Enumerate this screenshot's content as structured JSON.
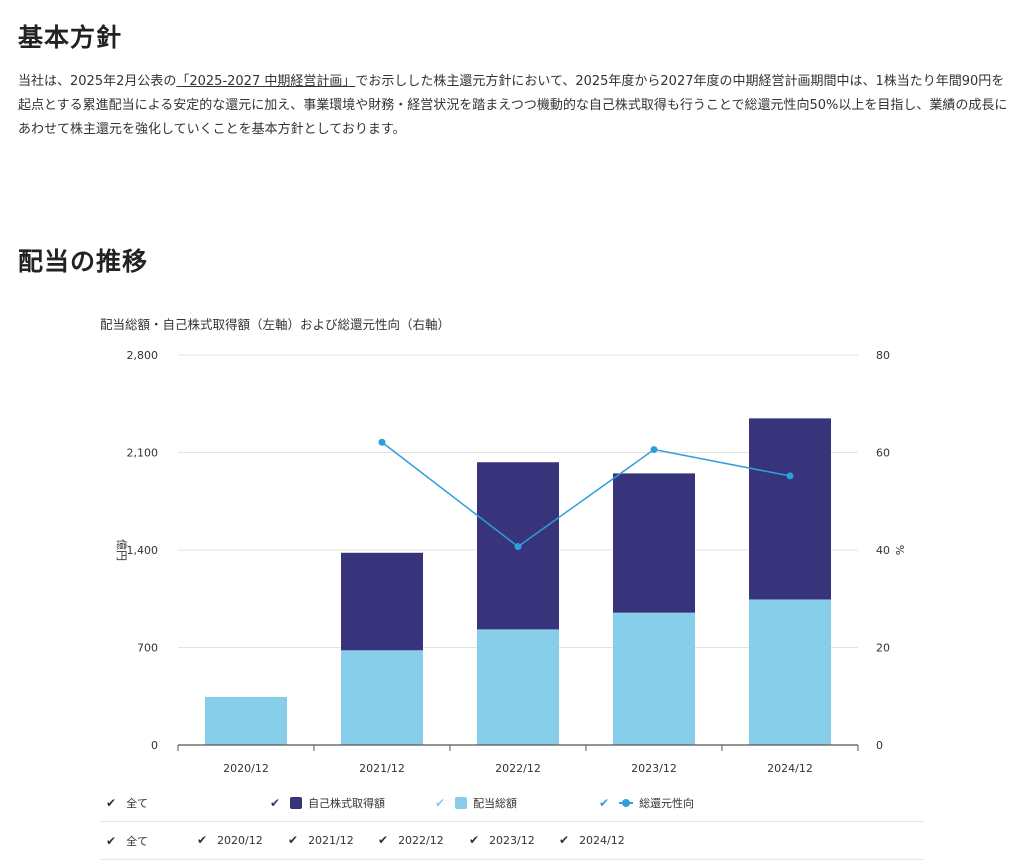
{
  "sections": {
    "policy_heading": "基本方針",
    "policy_text_before": "当社は、2025年2月公表の",
    "policy_link": "「2025-2027 中期経営計画」",
    "policy_text_after": "でお示しした株主還元方針において、2025年度から2027年度の中期経営計画期間中は、1株当たり年間90円を起点とする累進配当による安定的な還元に加え、事業環境や財務・経営状況を踏まえつつ機動的な自己株式取得も行うことで総還元性向50%以上を目指し、業績の成長にあわせて株主還元を強化していくことを基本方針としております。",
    "trend_heading": "配当の推移"
  },
  "chart_data": {
    "type": "bar",
    "stacked": true,
    "title": "配当総額・自己株式取得額（左軸）および総還元性向（右軸）",
    "categories": [
      "2020/12",
      "2021/12",
      "2022/12",
      "2023/12",
      "2024/12"
    ],
    "ylabel": "億円",
    "y2label": "%",
    "ylim": [
      0,
      2800
    ],
    "y2lim": [
      0,
      80
    ],
    "yticks": [
      0,
      700,
      1400,
      2100,
      2800
    ],
    "y2ticks": [
      0,
      20,
      40,
      60,
      80
    ],
    "yticklabels": [
      "0",
      "700",
      "1,400",
      "2,100",
      "2,800"
    ],
    "y2ticklabels": [
      "0",
      "20",
      "40",
      "60",
      "80"
    ],
    "grid": true,
    "series": [
      {
        "name": "配当総額",
        "type": "bar",
        "axis": "left",
        "color": "#87ceeb",
        "values": [
          345,
          680,
          830,
          950,
          1045
        ]
      },
      {
        "name": "自己株式取得額",
        "type": "bar",
        "axis": "left",
        "color": "#37347b",
        "values": [
          0,
          700,
          1200,
          1000,
          1300
        ]
      },
      {
        "name": "総還元性向",
        "type": "line",
        "axis": "right",
        "color": "#2e9fdb",
        "values": [
          null,
          62.1,
          40.7,
          60.6,
          55.2
        ]
      }
    ]
  },
  "legend": {
    "all_label": "全て",
    "series_labels": [
      "自己株式取得額",
      "配当総額",
      "総還元性向"
    ],
    "category_labels": [
      "2020/12",
      "2021/12",
      "2022/12",
      "2023/12",
      "2024/12"
    ],
    "check": "✔"
  }
}
